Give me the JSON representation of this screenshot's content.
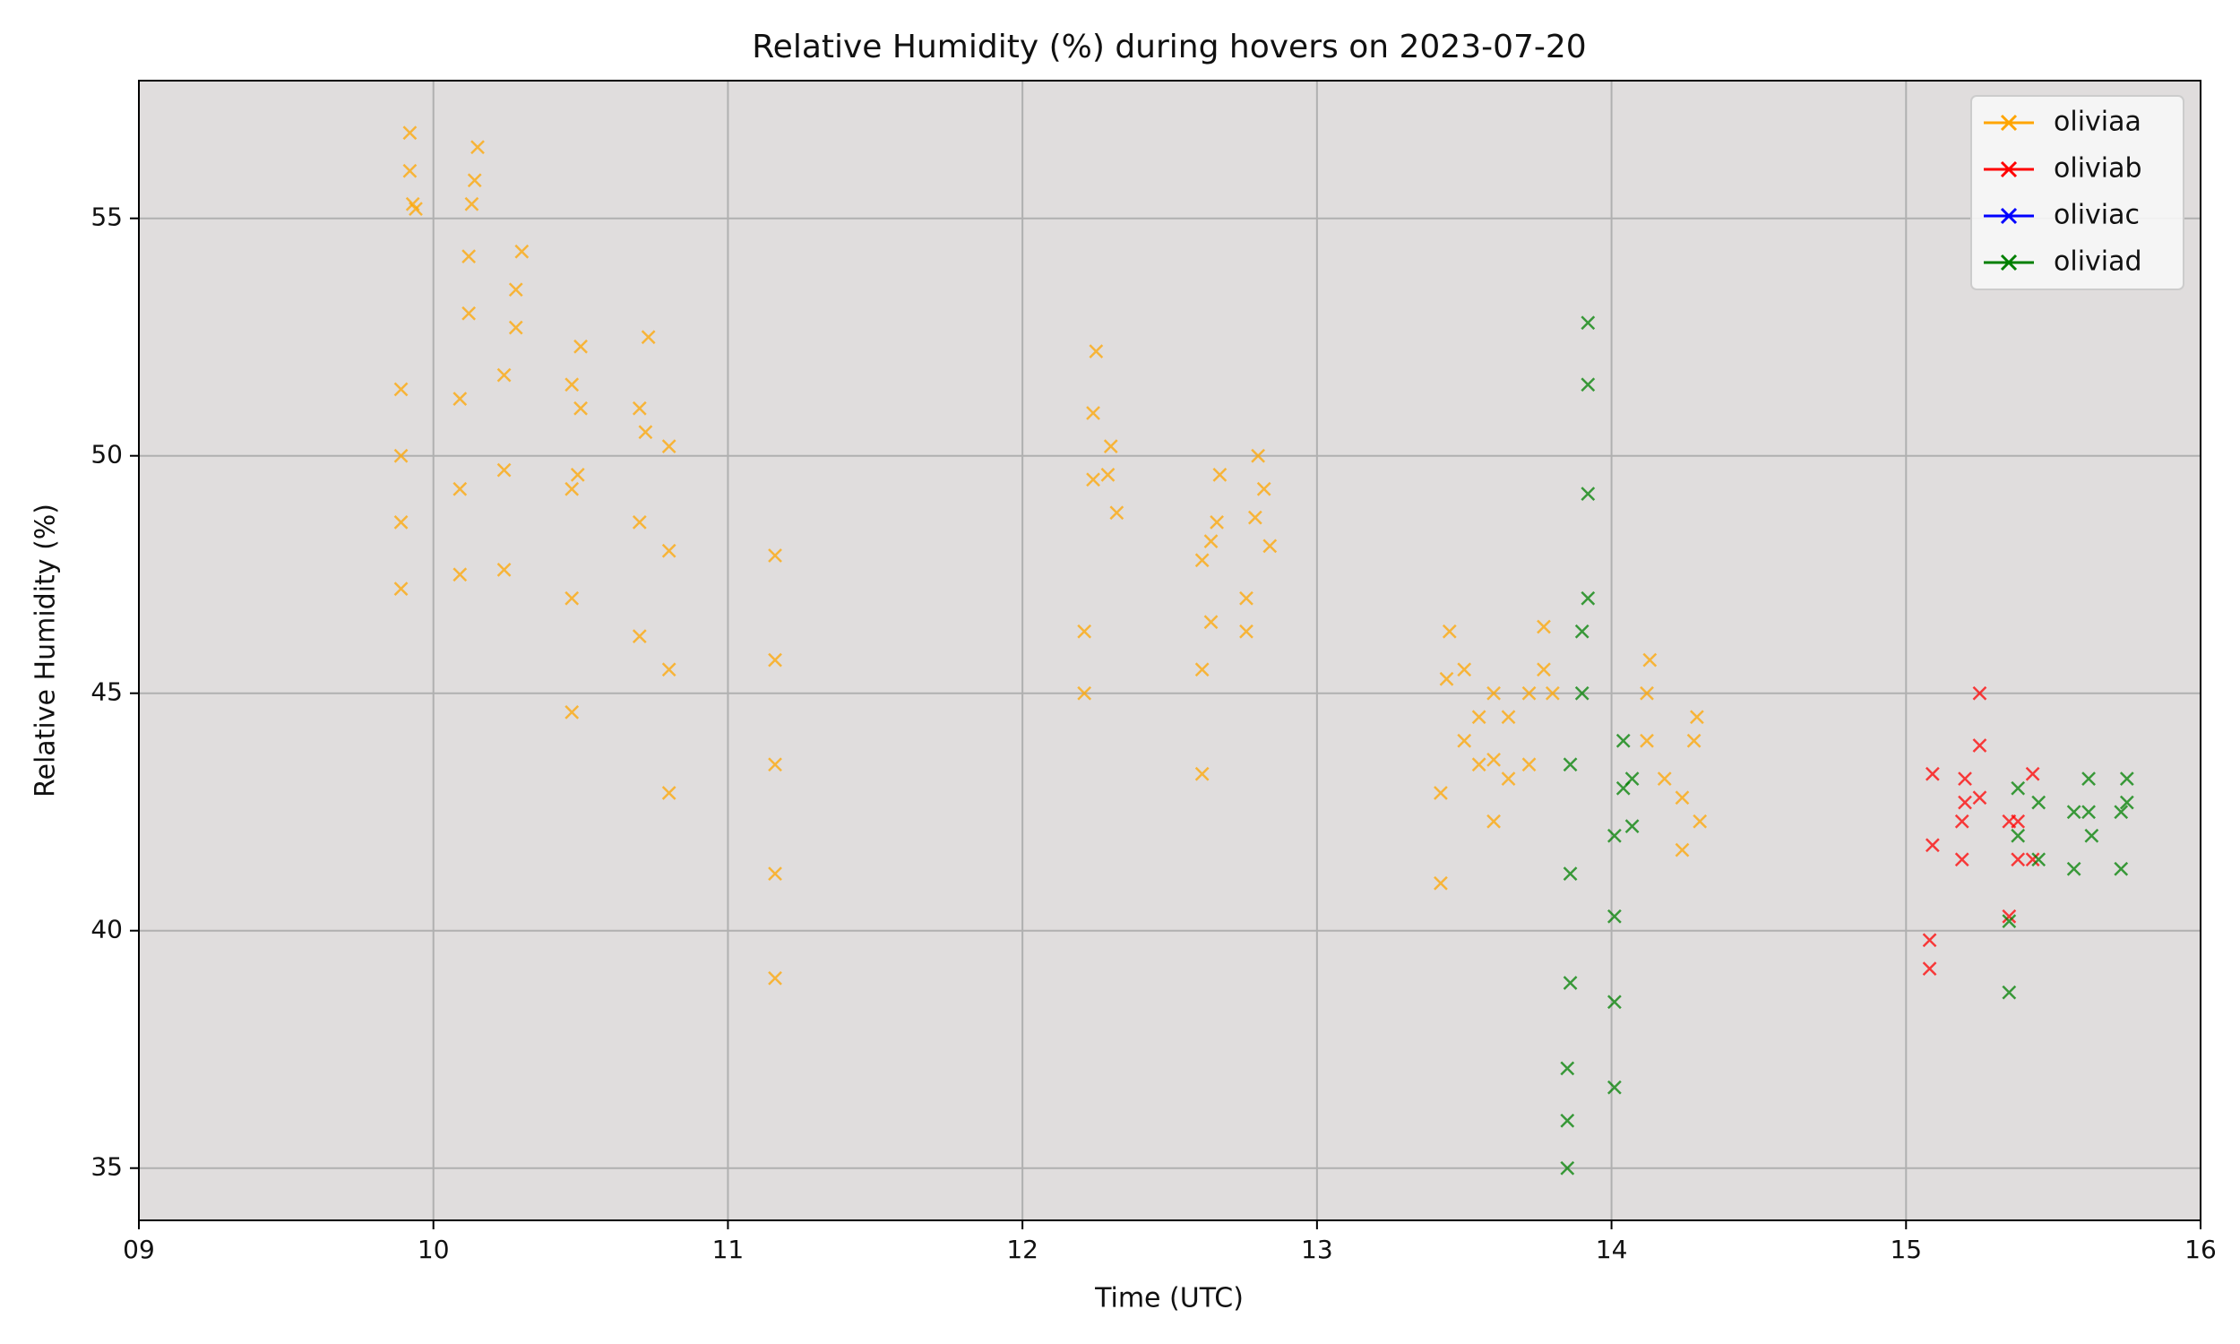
{
  "chart_data": {
    "type": "scatter",
    "title": "Relative Humidity (%) during hovers on 2023-07-20",
    "x_label": "Time (UTC)",
    "y_label": "Relative Humidity (%)",
    "xlim": [
      9,
      16
    ],
    "xticks": [
      {
        "value": 9,
        "label": "09"
      },
      10,
      11,
      12,
      13,
      14,
      15,
      16
    ],
    "ylim": [
      33.9,
      57.9
    ],
    "yticks": [
      35,
      40,
      45,
      50,
      55
    ],
    "grid": true,
    "legend": "upper right",
    "series": [
      {
        "name": "oliviaa",
        "color": "#ffa500",
        "x": [
          9.89,
          9.89,
          9.89,
          9.89,
          9.92,
          9.92,
          9.93,
          9.94,
          10.09,
          10.09,
          10.09,
          10.12,
          10.12,
          10.13,
          10.14,
          10.15,
          10.24,
          10.24,
          10.24,
          10.28,
          10.28,
          10.3,
          10.47,
          10.47,
          10.47,
          10.47,
          10.49,
          10.5,
          10.5,
          10.7,
          10.7,
          10.7,
          10.72,
          10.73,
          10.8,
          10.8,
          10.8,
          10.8,
          11.16,
          11.16,
          11.16,
          11.16,
          11.16,
          12.21,
          12.21,
          12.24,
          12.24,
          12.25,
          12.29,
          12.3,
          12.32,
          12.61,
          12.61,
          12.61,
          12.64,
          12.64,
          12.66,
          12.67,
          12.76,
          12.76,
          12.79,
          12.8,
          12.82,
          12.84,
          13.42,
          13.42,
          13.44,
          13.45,
          13.5,
          13.5,
          13.55,
          13.55,
          13.6,
          13.6,
          13.6,
          13.65,
          13.65,
          13.72,
          13.72,
          13.77,
          13.77,
          13.8,
          14.12,
          14.12,
          14.13,
          14.18,
          14.24,
          14.24,
          14.28,
          14.29,
          14.3
        ],
        "values": [
          47.2,
          48.6,
          50,
          51.4,
          56.8,
          56,
          55.3,
          55.2,
          47.5,
          49.3,
          51.2,
          53,
          54.2,
          55.3,
          55.8,
          56.5,
          47.6,
          49.7,
          51.7,
          52.7,
          53.5,
          54.3,
          44.6,
          47,
          49.3,
          51.5,
          49.6,
          51,
          52.3,
          46.2,
          48.6,
          51,
          50.5,
          52.5,
          42.9,
          45.5,
          48,
          50.2,
          39,
          41.2,
          43.5,
          45.7,
          47.9,
          45,
          46.3,
          49.5,
          50.9,
          52.2,
          49.6,
          50.2,
          48.8,
          43.3,
          45.5,
          47.8,
          46.5,
          48.2,
          48.6,
          49.6,
          46.3,
          47,
          48.7,
          50,
          49.3,
          48.1,
          41,
          42.9,
          45.3,
          46.3,
          44,
          45.5,
          43.5,
          44.5,
          42.3,
          43.6,
          45,
          43.2,
          44.5,
          43.5,
          45,
          45.5,
          46.4,
          45,
          44,
          45,
          45.7,
          43.2,
          41.7,
          42.8,
          44,
          44.5,
          42.3
        ]
      },
      {
        "name": "oliviab",
        "color": "#ff0000",
        "x": [
          15.08,
          15.08,
          15.09,
          15.09,
          15.19,
          15.19,
          15.2,
          15.2,
          15.25,
          15.25,
          15.25,
          15.35,
          15.35,
          15.38,
          15.38,
          15.43,
          15.43
        ],
        "values": [
          39.2,
          39.8,
          41.8,
          43.3,
          41.5,
          42.3,
          42.7,
          43.2,
          42.8,
          43.9,
          45,
          40.3,
          42.3,
          41.5,
          42.3,
          41.5,
          43.3
        ]
      },
      {
        "name": "oliviac",
        "color": "#0000ff",
        "x": [],
        "values": []
      },
      {
        "name": "oliviad",
        "color": "#008000",
        "x": [
          13.85,
          13.85,
          13.85,
          13.86,
          13.86,
          13.86,
          13.9,
          13.9,
          13.92,
          13.92,
          13.92,
          13.92,
          14.01,
          14.01,
          14.01,
          14.01,
          14.04,
          14.04,
          14.07,
          14.07,
          15.35,
          15.35,
          15.38,
          15.38,
          15.45,
          15.45,
          15.57,
          15.57,
          15.62,
          15.62,
          15.63,
          15.73,
          15.73,
          15.75,
          15.75
        ],
        "values": [
          35,
          36,
          37.1,
          38.9,
          41.2,
          43.5,
          45,
          46.3,
          47,
          49.2,
          51.5,
          52.8,
          36.7,
          38.5,
          40.3,
          42,
          43,
          44,
          42.2,
          43.2,
          38.7,
          40.2,
          42,
          43,
          41.5,
          42.7,
          41.3,
          42.5,
          42.5,
          43.2,
          42,
          41.3,
          42.5,
          42.7,
          43.2
        ]
      }
    ]
  }
}
